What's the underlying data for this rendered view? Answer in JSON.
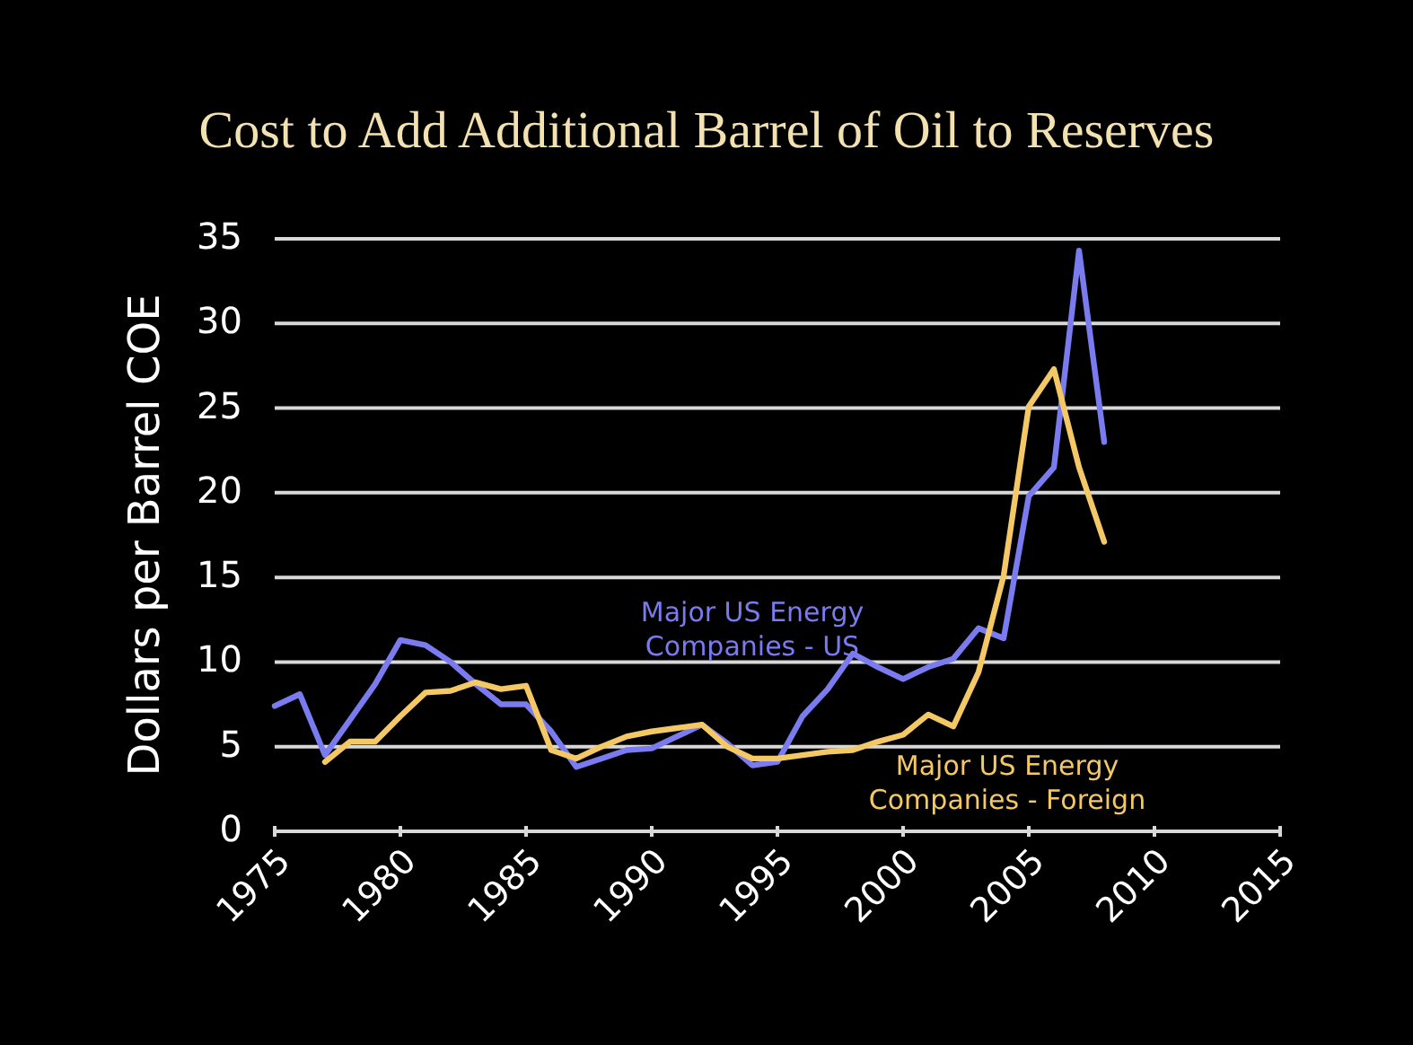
{
  "chart_data": {
    "type": "line",
    "title": "Cost to Add Additional Barrel of Oil to Reserves",
    "ylabel": "Dollars per Barrel COE",
    "xlim": [
      1975,
      2015
    ],
    "xticks": [
      1975,
      1980,
      1985,
      1990,
      1995,
      2000,
      2005,
      2010,
      2015
    ],
    "ylim": [
      0,
      35
    ],
    "yticks": [
      0,
      5,
      10,
      15,
      20,
      25,
      30,
      35
    ],
    "grid": "y",
    "marker": "none",
    "line_style": "solid",
    "series": [
      {
        "name": "Major US Energy Companies - US",
        "color": "#7b7bf0",
        "x": [
          1975,
          1976,
          1977,
          1978,
          1979,
          1980,
          1981,
          1982,
          1983,
          1984,
          1985,
          1986,
          1987,
          1988,
          1989,
          1990,
          1991,
          1992,
          1993,
          1994,
          1995,
          1996,
          1997,
          1998,
          1999,
          2000,
          2001,
          2002,
          2003,
          2004,
          2005,
          2006,
          2007,
          2008
        ],
        "values": [
          7.4,
          8.1,
          4.5,
          6.6,
          8.7,
          11.3,
          11.0,
          10.0,
          8.7,
          7.5,
          7.5,
          5.9,
          3.8,
          4.3,
          4.8,
          4.9,
          5.6,
          6.3,
          5.2,
          3.9,
          4.1,
          6.8,
          8.4,
          10.5,
          9.7,
          9.0,
          9.7,
          10.2,
          12.0,
          11.4,
          19.8,
          21.5,
          34.3,
          23.0
        ]
      },
      {
        "name": "Major US Energy Companies - Foreign",
        "color": "#f5c866",
        "x": [
          1977,
          1978,
          1979,
          1980,
          1981,
          1982,
          1983,
          1984,
          1985,
          1986,
          1987,
          1988,
          1989,
          1990,
          1991,
          1992,
          1993,
          1994,
          1995,
          1996,
          1997,
          1998,
          1999,
          2000,
          2001,
          2002,
          2003,
          2004,
          2005,
          2006,
          2007,
          2008
        ],
        "values": [
          4.1,
          5.3,
          5.3,
          6.8,
          8.2,
          8.3,
          8.8,
          8.4,
          8.6,
          4.8,
          4.3,
          5.0,
          5.6,
          5.9,
          6.1,
          6.3,
          5.0,
          4.3,
          4.3,
          4.5,
          4.7,
          4.8,
          5.3,
          5.7,
          6.9,
          6.2,
          9.4,
          15.1,
          25.1,
          27.3,
          21.5,
          17.1
        ]
      }
    ]
  }
}
